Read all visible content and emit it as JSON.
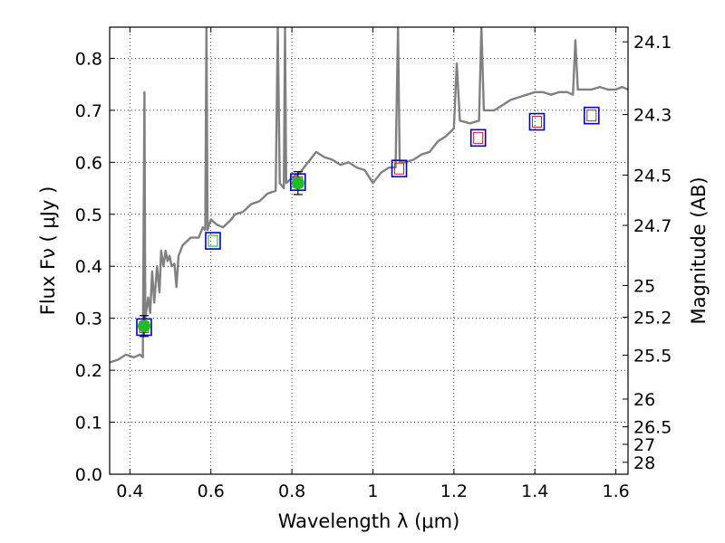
{
  "chart_data": {
    "type": "scatter",
    "title": "",
    "xlabel": "Wavelength  λ (μm)",
    "ylabel": "Flux  Fν  ( μJy )",
    "y2label": "Magnitude (AB)",
    "xlim": [
      0.35,
      1.63
    ],
    "ylim": [
      0.0,
      0.86
    ],
    "grid": true,
    "x_ticks": [
      0.4,
      0.6,
      0.8,
      1.0,
      1.2,
      1.4,
      1.6
    ],
    "x_tick_labels": [
      "0.4",
      "0.6",
      "0.8",
      "1",
      "1.2",
      "1.4",
      "1.6"
    ],
    "y_ticks": [
      0.0,
      0.1,
      0.2,
      0.3,
      0.4,
      0.5,
      0.6,
      0.7,
      0.8
    ],
    "y_tick_labels": [
      "0.0",
      "0.1",
      "0.2",
      "0.3",
      "0.4",
      "0.5",
      "0.6",
      "0.7",
      "0.8"
    ],
    "y2_ticks": [
      24.1,
      24.3,
      24.5,
      24.7,
      25,
      25.2,
      25.5,
      26,
      26.5,
      27,
      28
    ],
    "y2_tick_labels": [
      "24.1",
      "24.3",
      "24.5",
      "24.7",
      "25",
      "25.2",
      "25.5",
      "26",
      "26.5",
      "27",
      "28"
    ],
    "colors": {
      "spectrum": "#808080",
      "observed": "#22bb22",
      "model_box": "#0000cc",
      "model_inner": "#cc2222",
      "model_inner_alt": "#22aa22",
      "errorbar": "#000000"
    },
    "spectrum": [
      [
        0.35,
        0.215
      ],
      [
        0.37,
        0.22
      ],
      [
        0.39,
        0.23
      ],
      [
        0.41,
        0.225
      ],
      [
        0.425,
        0.23
      ],
      [
        0.432,
        0.225
      ],
      [
        0.436,
        0.735
      ],
      [
        0.438,
        0.3
      ],
      [
        0.445,
        0.34
      ],
      [
        0.45,
        0.31
      ],
      [
        0.455,
        0.39
      ],
      [
        0.46,
        0.33
      ],
      [
        0.467,
        0.4
      ],
      [
        0.473,
        0.35
      ],
      [
        0.477,
        0.43
      ],
      [
        0.483,
        0.4
      ],
      [
        0.488,
        0.43
      ],
      [
        0.493,
        0.41
      ],
      [
        0.498,
        0.42
      ],
      [
        0.503,
        0.4
      ],
      [
        0.51,
        0.405
      ],
      [
        0.515,
        0.36
      ],
      [
        0.52,
        0.42
      ],
      [
        0.53,
        0.44
      ],
      [
        0.55,
        0.455
      ],
      [
        0.57,
        0.455
      ],
      [
        0.58,
        0.475
      ],
      [
        0.586,
        0.47
      ],
      [
        0.589,
        0.86
      ],
      [
        0.592,
        0.47
      ],
      [
        0.6,
        0.49
      ],
      [
        0.615,
        0.48
      ],
      [
        0.63,
        0.475
      ],
      [
        0.65,
        0.49
      ],
      [
        0.66,
        0.5
      ],
      [
        0.68,
        0.505
      ],
      [
        0.7,
        0.52
      ],
      [
        0.72,
        0.525
      ],
      [
        0.74,
        0.54
      ],
      [
        0.76,
        0.545
      ],
      [
        0.765,
        0.86
      ],
      [
        0.77,
        0.56
      ],
      [
        0.78,
        0.55
      ],
      [
        0.783,
        0.86
      ],
      [
        0.786,
        0.56
      ],
      [
        0.8,
        0.57
      ],
      [
        0.82,
        0.58
      ],
      [
        0.84,
        0.6
      ],
      [
        0.86,
        0.62
      ],
      [
        0.88,
        0.61
      ],
      [
        0.9,
        0.605
      ],
      [
        0.92,
        0.595
      ],
      [
        0.94,
        0.6
      ],
      [
        0.96,
        0.59
      ],
      [
        0.98,
        0.585
      ],
      [
        1.0,
        0.56
      ],
      [
        1.02,
        0.58
      ],
      [
        1.04,
        0.59
      ],
      [
        1.056,
        0.59
      ],
      [
        1.062,
        0.86
      ],
      [
        1.066,
        0.6
      ],
      [
        1.08,
        0.6
      ],
      [
        1.1,
        0.605
      ],
      [
        1.12,
        0.615
      ],
      [
        1.14,
        0.62
      ],
      [
        1.16,
        0.64
      ],
      [
        1.18,
        0.65
      ],
      [
        1.2,
        0.665
      ],
      [
        1.207,
        0.79
      ],
      [
        1.215,
        0.68
      ],
      [
        1.24,
        0.675
      ],
      [
        1.262,
        0.68
      ],
      [
        1.268,
        0.86
      ],
      [
        1.274,
        0.7
      ],
      [
        1.3,
        0.7
      ],
      [
        1.32,
        0.71
      ],
      [
        1.34,
        0.72
      ],
      [
        1.36,
        0.725
      ],
      [
        1.38,
        0.73
      ],
      [
        1.4,
        0.735
      ],
      [
        1.42,
        0.735
      ],
      [
        1.44,
        0.73
      ],
      [
        1.46,
        0.735
      ],
      [
        1.48,
        0.735
      ],
      [
        1.494,
        0.73
      ],
      [
        1.5,
        0.835
      ],
      [
        1.506,
        0.74
      ],
      [
        1.52,
        0.74
      ],
      [
        1.54,
        0.74
      ],
      [
        1.56,
        0.745
      ],
      [
        1.58,
        0.74
      ],
      [
        1.6,
        0.74
      ],
      [
        1.615,
        0.745
      ],
      [
        1.63,
        0.74
      ]
    ],
    "observed_points": [
      {
        "x": 0.435,
        "y": 0.285,
        "yerr": 0.02
      },
      {
        "x": 0.815,
        "y": 0.56,
        "yerr": 0.022
      }
    ],
    "model_points": [
      {
        "x": 0.435,
        "y": 0.283,
        "inner": "model_inner"
      },
      {
        "x": 0.605,
        "y": 0.449,
        "inner": "model_inner_alt"
      },
      {
        "x": 0.815,
        "y": 0.562,
        "inner": "model_inner"
      },
      {
        "x": 1.065,
        "y": 0.588,
        "inner": "model_inner"
      },
      {
        "x": 1.26,
        "y": 0.647,
        "inner": "model_inner"
      },
      {
        "x": 1.405,
        "y": 0.678,
        "inner": "model_inner"
      },
      {
        "x": 1.54,
        "y": 0.69,
        "inner": "model_inner"
      }
    ]
  }
}
